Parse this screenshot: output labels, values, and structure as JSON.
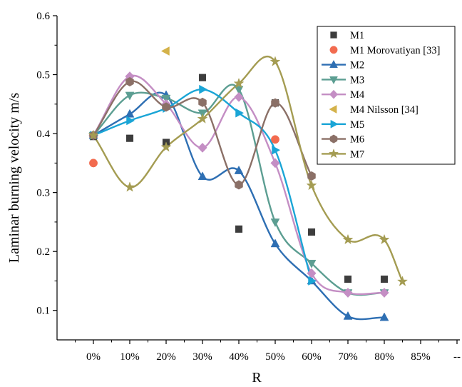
{
  "chart_data": {
    "type": "scatter",
    "title": "",
    "xlabel": "R",
    "ylabel": "Laminar burning velocity m/s",
    "ylim": [
      0.05,
      0.6
    ],
    "y_ticks": [
      "0.1",
      "0.2",
      "0.3",
      "0.4",
      "0.5",
      "0.6"
    ],
    "categories": [
      "0%",
      "10%",
      "20%",
      "30%",
      "40%",
      "50%",
      "60%",
      "70%",
      "80%",
      "85%",
      "--"
    ],
    "grid": false,
    "legend_position": "top-right",
    "series": [
      {
        "name": "M1",
        "marker": "square",
        "color": "#3d3d3d",
        "curve": false,
        "x": [
          0,
          10,
          20,
          30,
          40,
          50,
          60,
          70,
          80
        ],
        "y": [
          0.395,
          0.392,
          0.385,
          0.495,
          0.238,
          0.452,
          0.233,
          0.153,
          0.153
        ]
      },
      {
        "name": "M1 Morovatiyan [33]",
        "marker": "circle",
        "color": "#f26b4f",
        "curve": false,
        "x": [
          0,
          50
        ],
        "y": [
          0.35,
          0.39
        ]
      },
      {
        "name": "M2",
        "marker": "triangle-up",
        "color": "#2e6fb3",
        "curve": true,
        "x": [
          0,
          10,
          20,
          30,
          40,
          50,
          60,
          70,
          80
        ],
        "y": [
          0.397,
          0.433,
          0.465,
          0.327,
          0.337,
          0.213,
          0.15,
          0.09,
          0.088
        ]
      },
      {
        "name": "M3",
        "marker": "triangle-down",
        "color": "#5c9e92",
        "curve": true,
        "x": [
          0,
          10,
          20,
          30,
          40,
          50,
          60,
          70,
          80
        ],
        "y": [
          0.397,
          0.465,
          0.46,
          0.435,
          0.475,
          0.25,
          0.18,
          0.13,
          0.13
        ]
      },
      {
        "name": "M4",
        "marker": "diamond",
        "color": "#c48ec4",
        "curve": true,
        "x": [
          0,
          10,
          20,
          30,
          40,
          50,
          60,
          70,
          80
        ],
        "y": [
          0.397,
          0.497,
          0.45,
          0.376,
          0.462,
          0.35,
          0.163,
          0.13,
          0.13
        ]
      },
      {
        "name": "M4 Nilsson [34]",
        "marker": "triangle-left",
        "color": "#d4b24a",
        "curve": false,
        "x": [
          20
        ],
        "y": [
          0.54
        ]
      },
      {
        "name": "M5",
        "marker": "triangle-right",
        "color": "#1aa5d6",
        "curve": true,
        "x": [
          0,
          10,
          20,
          30,
          40,
          50,
          60
        ],
        "y": [
          0.397,
          0.422,
          0.443,
          0.475,
          0.435,
          0.372,
          0.15
        ]
      },
      {
        "name": "M6",
        "marker": "hexagon",
        "color": "#8b7067",
        "curve": true,
        "x": [
          0,
          10,
          20,
          30,
          40,
          50,
          60
        ],
        "y": [
          0.397,
          0.488,
          0.445,
          0.453,
          0.313,
          0.452,
          0.328
        ]
      },
      {
        "name": "M7",
        "marker": "star",
        "color": "#a49c52",
        "curve": true,
        "x": [
          0,
          10,
          20,
          30,
          40,
          50,
          60,
          70,
          80,
          85
        ],
        "y": [
          0.397,
          0.309,
          0.377,
          0.425,
          0.485,
          0.522,
          0.312,
          0.22,
          0.22,
          0.149
        ]
      }
    ]
  }
}
